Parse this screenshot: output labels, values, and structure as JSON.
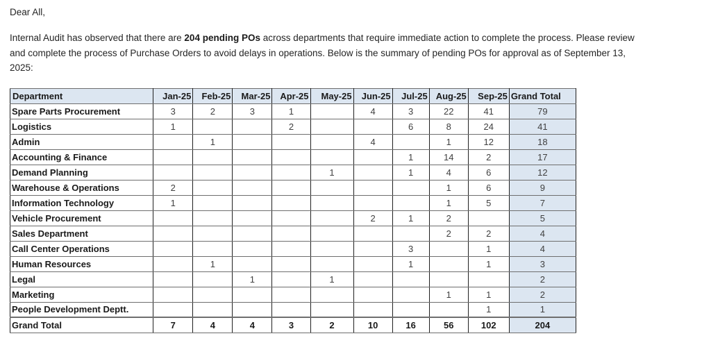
{
  "page": {
    "background": "#ffffff",
    "text_color": "#242424"
  },
  "message": {
    "greeting": "Dear All,",
    "line1_before_bold": "Internal Audit has observed that there are ",
    "line1_bold": "204 pending POs",
    "line1_after_bold": " across departments that require immediate action to complete the process. Please review",
    "line2": "and complete the process of Purchase Orders to avoid delays in operations. Below is the summary of pending POs for approval as of September 13,",
    "line3": "2025:"
  },
  "table": {
    "columns": [
      "Department",
      "Jan-25",
      "Feb-25",
      "Mar-25",
      "Apr-25",
      "May-25",
      "Jun-25",
      "Jul-25",
      "Aug-25",
      "Sep-25",
      "Grand Total"
    ],
    "rows": [
      {
        "department": "Spare Parts Procurement",
        "values": [
          "3",
          "2",
          "3",
          "1",
          "",
          "4",
          "3",
          "22",
          "41"
        ],
        "total": "79"
      },
      {
        "department": "Logistics",
        "values": [
          "1",
          "",
          "",
          "2",
          "",
          "",
          "6",
          "8",
          "24"
        ],
        "total": "41"
      },
      {
        "department": "Admin",
        "values": [
          "",
          "1",
          "",
          "",
          "",
          "4",
          "",
          "1",
          "12"
        ],
        "total": "18"
      },
      {
        "department": "Accounting & Finance",
        "values": [
          "",
          "",
          "",
          "",
          "",
          "",
          "1",
          "14",
          "2"
        ],
        "total": "17"
      },
      {
        "department": "Demand Planning",
        "values": [
          "",
          "",
          "",
          "",
          "1",
          "",
          "1",
          "4",
          "6"
        ],
        "total": "12"
      },
      {
        "department": "Warehouse & Operations",
        "values": [
          "2",
          "",
          "",
          "",
          "",
          "",
          "",
          "1",
          "6"
        ],
        "total": "9"
      },
      {
        "department": "Information Technology",
        "values": [
          "1",
          "",
          "",
          "",
          "",
          "",
          "",
          "1",
          "5"
        ],
        "total": "7"
      },
      {
        "department": "Vehicle Procurement",
        "values": [
          "",
          "",
          "",
          "",
          "",
          "2",
          "1",
          "2",
          ""
        ],
        "total": "5"
      },
      {
        "department": "Sales Department",
        "values": [
          "",
          "",
          "",
          "",
          "",
          "",
          "",
          "2",
          "2"
        ],
        "total": "4"
      },
      {
        "department": "Call Center Operations",
        "values": [
          "",
          "",
          "",
          "",
          "",
          "",
          "3",
          "",
          "1"
        ],
        "total": "4"
      },
      {
        "department": "Human Resources",
        "values": [
          "",
          "1",
          "",
          "",
          "",
          "",
          "1",
          "",
          "1"
        ],
        "total": "3"
      },
      {
        "department": "Legal",
        "values": [
          "",
          "",
          "1",
          "",
          "1",
          "",
          "",
          "",
          ""
        ],
        "total": "2"
      },
      {
        "department": "Marketing",
        "values": [
          "",
          "",
          "",
          "",
          "",
          "",
          "",
          "1",
          "1"
        ],
        "total": "2"
      },
      {
        "department": "People Development Deptt.",
        "values": [
          "",
          "",
          "",
          "",
          "",
          "",
          "",
          "",
          "1"
        ],
        "total": "1"
      }
    ],
    "grand_total": {
      "label": "Grand Total",
      "values": [
        "7",
        "4",
        "4",
        "3",
        "2",
        "10",
        "16",
        "56",
        "102"
      ],
      "total": "204"
    },
    "colors": {
      "header_bg": "#DCE6F1",
      "total_column_bg": "#DCE6F1",
      "vertical_border": "#1f1f1f",
      "horizontal_border": "#6e6e6e"
    }
  }
}
